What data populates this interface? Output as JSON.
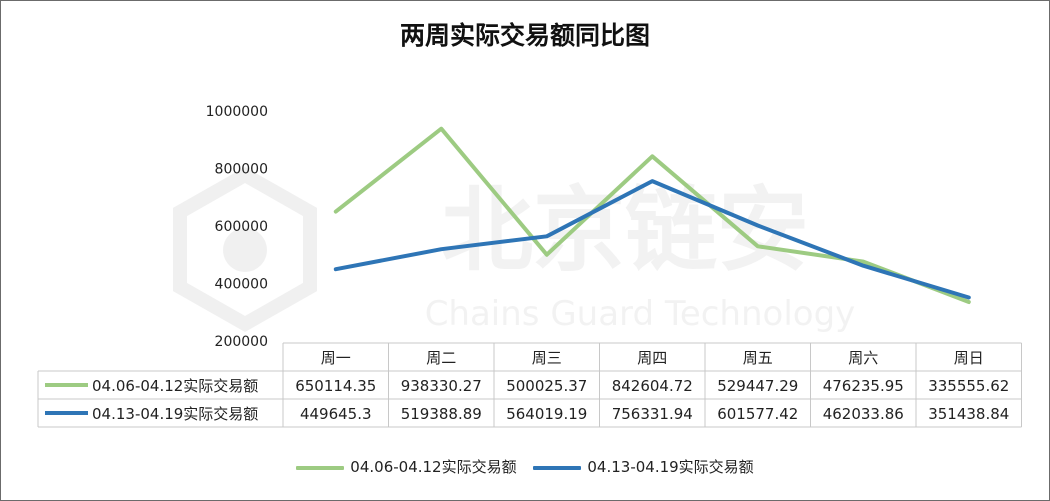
{
  "chart_data": {
    "type": "line",
    "title": "两周实际交易额同比图",
    "categories": [
      "周一",
      "周二",
      "周三",
      "周四",
      "周五",
      "周六",
      "周日"
    ],
    "ylim": [
      200000,
      1000000
    ],
    "yticks": [
      "1000000",
      "800000",
      "600000",
      "400000",
      "200000"
    ],
    "grid": false,
    "legend_position": "bottom",
    "series": [
      {
        "name": "04.06-04.12实际交易额",
        "color": "#9dcb82",
        "values": [
          650114.35,
          938330.27,
          500025.37,
          842604.72,
          529447.29,
          476235.95,
          335555.62
        ],
        "labels": [
          "650114.35",
          "938330.27",
          "500025.37",
          "842604.72",
          "529447.29",
          "476235.95",
          "335555.62"
        ]
      },
      {
        "name": "04.13-04.19实际交易额",
        "color": "#2e75b6",
        "values": [
          449645.3,
          519388.89,
          564019.19,
          756331.94,
          601577.42,
          462033.86,
          351438.84
        ],
        "labels": [
          "449645.3",
          "519388.89",
          "564019.19",
          "756331.94",
          "601577.42",
          "462033.86",
          "351438.84"
        ]
      }
    ]
  },
  "watermark": {
    "name": "北京链安",
    "subtitle": "Chains Guard Technology"
  }
}
